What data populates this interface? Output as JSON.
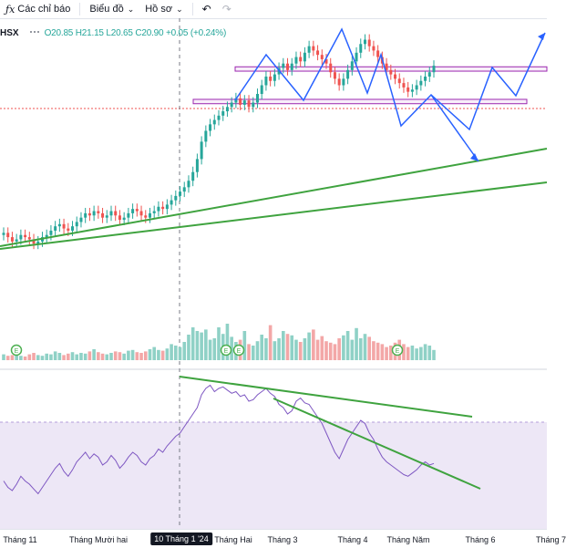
{
  "toolbar": {
    "indicators_label": "Các chỉ báo",
    "chart_type_label": "Biểu đồ",
    "profile_label": "Hồ sơ"
  },
  "legend": {
    "symbol": "HSX",
    "ohlc": "O20.85 H21.15 L20.65 C20.90 +0.05 (+0.24%)"
  },
  "colors": {
    "up": "#26a69a",
    "down": "#ef5350",
    "up_vol": "#8fd1c6",
    "down_vol": "#f3a7a7",
    "trend": "#3fa33f",
    "projection": "#2962ff",
    "zone": "#9c27b0",
    "rsi": "#7e57c2",
    "rsi_band": "#ede7f6",
    "earnings": "#4caf50"
  },
  "xaxis": {
    "labels": [
      "Tháng 11",
      "Tháng Mười hai",
      "10 Tháng 1 '24",
      "Tháng Hai",
      "Tháng 3",
      "Tháng 4",
      "Tháng Năm",
      "Tháng 6",
      "Tháng 7"
    ],
    "highlighted_index": 2,
    "earnings_marker": "E"
  },
  "chart_data": [
    {
      "type": "candlestick",
      "description_scope": "price pane, daily candles Nov 2023 – May 2024, approximate closes",
      "x_start": "Tháng 11",
      "closes": [
        13.2,
        13.0,
        12.8,
        12.9,
        13.1,
        13.0,
        12.9,
        12.7,
        12.8,
        13.0,
        13.1,
        13.3,
        13.5,
        13.6,
        13.4,
        13.3,
        13.5,
        13.7,
        13.9,
        14.1,
        14.0,
        14.2,
        14.1,
        13.9,
        14.0,
        14.2,
        14.0,
        13.8,
        13.9,
        14.1,
        14.3,
        14.2,
        14.0,
        13.9,
        14.1,
        14.2,
        14.4,
        14.3,
        14.5,
        14.7,
        14.9,
        15.1,
        15.3,
        15.6,
        16.0,
        16.6,
        17.4,
        17.9,
        18.2,
        18.4,
        18.6,
        18.8,
        19.0,
        19.2,
        19.4,
        19.1,
        19.3,
        19.0,
        19.2,
        19.6,
        20.0,
        20.4,
        20.2,
        20.5,
        20.8,
        21.0,
        20.7,
        21.0,
        21.3,
        21.1,
        21.5,
        21.8,
        21.6,
        21.4,
        21.2,
        21.0,
        20.6,
        20.3,
        20.0,
        20.3,
        20.7,
        21.1,
        21.5,
        21.9,
        22.1,
        21.8,
        21.6,
        21.3,
        21.0,
        20.7,
        20.5,
        20.3,
        20.1,
        19.9,
        19.7,
        19.8,
        20.0,
        20.2,
        20.4,
        20.6,
        20.9
      ],
      "resistance_zone": [
        20.65,
        20.85
      ],
      "support_zone": [
        19.15,
        19.35
      ],
      "projection_up": "to ~23.5",
      "projection_down": "to ~17.6"
    },
    {
      "type": "bar",
      "description_scope": "volume pane, relative units 0–100",
      "values": [
        8,
        6,
        7,
        9,
        6,
        5,
        8,
        10,
        7,
        6,
        9,
        8,
        12,
        10,
        7,
        9,
        11,
        8,
        10,
        9,
        12,
        15,
        11,
        9,
        8,
        10,
        12,
        11,
        9,
        13,
        14,
        11,
        10,
        12,
        15,
        18,
        14,
        13,
        16,
        22,
        20,
        18,
        25,
        35,
        45,
        40,
        38,
        42,
        28,
        30,
        45,
        36,
        50,
        32,
        25,
        28,
        40,
        22,
        20,
        26,
        35,
        30,
        48,
        26,
        30,
        40,
        36,
        34,
        28,
        25,
        30,
        38,
        42,
        28,
        33,
        26,
        24,
        22,
        30,
        34,
        40,
        28,
        44,
        30,
        36,
        32,
        26,
        24,
        22,
        18,
        20,
        24,
        28,
        22,
        18,
        20,
        16,
        18,
        22,
        20,
        14
      ]
    },
    {
      "type": "line",
      "description_scope": "RSI pane, oscillator 0–100",
      "ylim": [
        0,
        100
      ],
      "band": [
        30,
        70
      ],
      "values": [
        30,
        26,
        24,
        28,
        33,
        30,
        28,
        25,
        22,
        26,
        30,
        34,
        38,
        41,
        36,
        33,
        37,
        42,
        45,
        48,
        44,
        47,
        45,
        40,
        42,
        46,
        43,
        38,
        41,
        45,
        48,
        46,
        42,
        40,
        44,
        46,
        50,
        48,
        52,
        55,
        58,
        60,
        64,
        68,
        72,
        76,
        84,
        88,
        90,
        86,
        88,
        89,
        87,
        85,
        86,
        83,
        84,
        80,
        81,
        84,
        86,
        88,
        85,
        83,
        78,
        76,
        72,
        74,
        80,
        82,
        79,
        78,
        74,
        70,
        66,
        60,
        54,
        48,
        44,
        50,
        56,
        60,
        64,
        68,
        66,
        60,
        56,
        50,
        45,
        42,
        40,
        38,
        36,
        34,
        33,
        35,
        37,
        40,
        42,
        40,
        41
      ]
    }
  ]
}
